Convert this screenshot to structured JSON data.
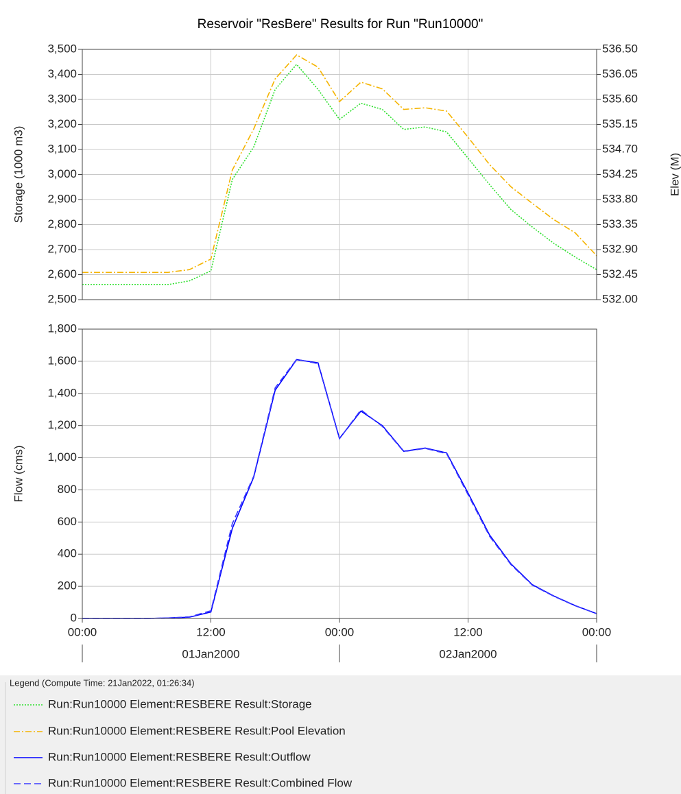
{
  "chart_data": [
    {
      "type": "line",
      "title": "Reservoir \"ResBere\" Results for Run \"Run10000\"",
      "ylabel": "Storage (1000 m3)",
      "y2label": "Elev (M)",
      "x": [
        "2000-01-01 00:00",
        "2000-01-01 02:00",
        "2000-01-01 04:00",
        "2000-01-01 06:00",
        "2000-01-01 08:00",
        "2000-01-01 10:00",
        "2000-01-01 12:00",
        "2000-01-01 14:00",
        "2000-01-01 16:00",
        "2000-01-01 18:00",
        "2000-01-01 20:00",
        "2000-01-01 22:00",
        "2000-01-02 00:00",
        "2000-01-02 02:00",
        "2000-01-02 04:00",
        "2000-01-02 06:00",
        "2000-01-02 08:00",
        "2000-01-02 10:00",
        "2000-01-02 12:00",
        "2000-01-02 14:00",
        "2000-01-02 16:00",
        "2000-01-02 18:00",
        "2000-01-02 20:00",
        "2000-01-02 22:00",
        "2000-01-03 00:00"
      ],
      "xlim": [
        "2000-01-01 00:00",
        "2000-01-03 00:00"
      ],
      "xticks": [
        "2000-01-01 12:00",
        "2000-01-02 00:00",
        "2000-01-02 12:00"
      ],
      "ylim": [
        2500,
        3500
      ],
      "yticks": [
        {
          "value": 2500,
          "label": "2,500"
        },
        {
          "value": 2600,
          "label": "2,600"
        },
        {
          "value": 2700,
          "label": "2,700"
        },
        {
          "value": 2800,
          "label": "2,800"
        },
        {
          "value": 2900,
          "label": "2,900"
        },
        {
          "value": 3000,
          "label": "3,000"
        },
        {
          "value": 3100,
          "label": "3,100"
        },
        {
          "value": 3200,
          "label": "3,200"
        },
        {
          "value": 3300,
          "label": "3,300"
        },
        {
          "value": 3400,
          "label": "3,400"
        },
        {
          "value": 3500,
          "label": "3,500"
        }
      ],
      "y2lim": [
        532.0,
        536.5
      ],
      "y2ticks": [
        {
          "value": 532.0,
          "label": "532.00"
        },
        {
          "value": 532.45,
          "label": "532.45"
        },
        {
          "value": 532.9,
          "label": "532.90"
        },
        {
          "value": 533.35,
          "label": "533.35"
        },
        {
          "value": 533.8,
          "label": "533.80"
        },
        {
          "value": 534.25,
          "label": "534.25"
        },
        {
          "value": 534.7,
          "label": "534.70"
        },
        {
          "value": 535.15,
          "label": "535.15"
        },
        {
          "value": 535.6,
          "label": "535.60"
        },
        {
          "value": 536.05,
          "label": "536.05"
        },
        {
          "value": 536.5,
          "label": "536.50"
        }
      ],
      "grid": true,
      "series": [
        {
          "name": "Run:Run10000 Element:RESBERE Result:Storage",
          "color": "#2ee02e",
          "line_style": "dotted",
          "values": [
            2560,
            2560,
            2560,
            2560,
            2560,
            2575,
            2615,
            2980,
            3110,
            3340,
            3440,
            3340,
            3220,
            3285,
            3260,
            3180,
            3190,
            3170,
            3065,
            2960,
            2860,
            2790,
            2725,
            2670,
            2620
          ]
        },
        {
          "name": "Run:Run10000 Element:RESBERE Result:Pool Elevation",
          "color": "#f5b400",
          "line_style": "dashdot",
          "axis": "y2",
          "values": [
            532.49,
            532.49,
            532.49,
            532.49,
            532.49,
            532.54,
            532.73,
            534.33,
            535.07,
            535.97,
            536.4,
            536.18,
            535.56,
            535.91,
            535.79,
            535.42,
            535.45,
            535.39,
            534.92,
            534.43,
            534.03,
            533.73,
            533.44,
            533.2,
            532.79
          ]
        }
      ]
    },
    {
      "type": "line",
      "ylabel": "Flow (cms)",
      "x": [
        "2000-01-01 00:00",
        "2000-01-01 02:00",
        "2000-01-01 04:00",
        "2000-01-01 06:00",
        "2000-01-01 08:00",
        "2000-01-01 10:00",
        "2000-01-01 12:00",
        "2000-01-01 14:00",
        "2000-01-01 16:00",
        "2000-01-01 18:00",
        "2000-01-01 20:00",
        "2000-01-01 22:00",
        "2000-01-02 00:00",
        "2000-01-02 02:00",
        "2000-01-02 04:00",
        "2000-01-02 06:00",
        "2000-01-02 08:00",
        "2000-01-02 10:00",
        "2000-01-02 12:00",
        "2000-01-02 14:00",
        "2000-01-02 16:00",
        "2000-01-02 18:00",
        "2000-01-02 20:00",
        "2000-01-02 22:00",
        "2000-01-03 00:00"
      ],
      "xlim": [
        "2000-01-01 00:00",
        "2000-01-03 00:00"
      ],
      "xticks": [
        {
          "value": "2000-01-01 00:00",
          "label": "00:00"
        },
        {
          "value": "2000-01-01 12:00",
          "label": "12:00"
        },
        {
          "value": "2000-01-02 00:00",
          "label": "00:00"
        },
        {
          "value": "2000-01-02 12:00",
          "label": "12:00"
        },
        {
          "value": "2000-01-03 00:00",
          "label": "00:00"
        }
      ],
      "x_groups": [
        {
          "label": "01Jan2000",
          "start": "2000-01-01 00:00",
          "end": "2000-01-02 00:00"
        },
        {
          "label": "02Jan2000",
          "start": "2000-01-02 00:00",
          "end": "2000-01-03 00:00"
        }
      ],
      "ylim": [
        0,
        1800
      ],
      "yticks": [
        0,
        200,
        400,
        600,
        800,
        {
          "value": 1000,
          "label": "1,000"
        },
        {
          "value": 1200,
          "label": "1,200"
        },
        {
          "value": 1400,
          "label": "1,400"
        },
        {
          "value": 1600,
          "label": "1,600"
        },
        {
          "value": 1800,
          "label": "1,800"
        }
      ],
      "grid": true,
      "series": [
        {
          "name": "Run:Run10000 Element:RESBERE Result:Outflow",
          "color": "#0000ff",
          "line_style": "solid",
          "values": [
            0,
            0,
            0,
            0,
            3,
            8,
            40,
            560,
            880,
            1420,
            1610,
            1590,
            1120,
            1290,
            1200,
            1040,
            1060,
            1030,
            780,
            520,
            340,
            210,
            140,
            80,
            30
          ]
        },
        {
          "name": "Run:Run10000 Element:RESBERE Result:Combined Flow",
          "color": "#3a3aff",
          "line_style": "dashed",
          "values": [
            0,
            0,
            0,
            0,
            3,
            10,
            48,
            590,
            885,
            1435,
            1612,
            1585,
            1118,
            1298,
            1195,
            1038,
            1058,
            1025,
            770,
            512,
            335,
            207,
            138,
            79,
            30
          ]
        }
      ]
    }
  ],
  "legend": {
    "title": "Legend (Compute Time: 21Jan2022, 01:26:34)"
  }
}
